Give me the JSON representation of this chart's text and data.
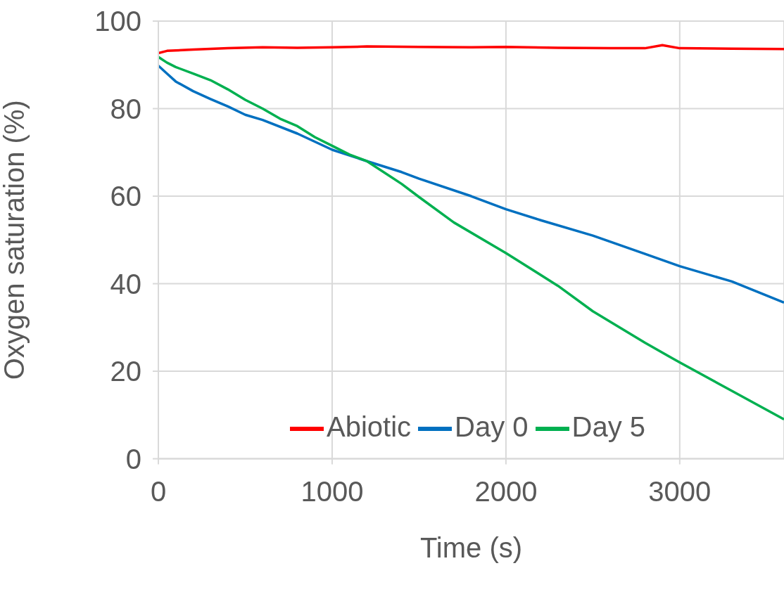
{
  "chart_data": {
    "type": "line",
    "xlabel": "Time (s)",
    "ylabel": "Oxygen saturation (%)",
    "xlim": [
      0,
      3600
    ],
    "xticks": [
      0,
      1000,
      2000,
      3000
    ],
    "ylim": [
      0,
      100
    ],
    "yticks": [
      0,
      20,
      40,
      60,
      80,
      100
    ],
    "grid": true,
    "legend": "bottom",
    "marker": "none",
    "line_style": "solid",
    "series": [
      {
        "name": "Abiotic",
        "color": "#ff0000",
        "x": [
          0,
          50,
          200,
          400,
          600,
          800,
          1000,
          1200,
          1500,
          1800,
          2000,
          2300,
          2600,
          2800,
          2900,
          3000,
          3300,
          3600
        ],
        "values": [
          92.7,
          93.2,
          93.5,
          93.8,
          94,
          93.9,
          94,
          94.2,
          94.1,
          94,
          94.1,
          93.9,
          93.8,
          93.8,
          94.5,
          93.8,
          93.7,
          93.6
        ]
      },
      {
        "name": "Day 0",
        "color": "#0070c0",
        "x": [
          0,
          50,
          100,
          200,
          300,
          400,
          500,
          600,
          800,
          1000,
          1200,
          1400,
          1500,
          1800,
          2000,
          2200,
          2500,
          2800,
          3000,
          3300,
          3600
        ],
        "values": [
          89.8,
          88,
          86.2,
          84,
          82.2,
          80.5,
          78.6,
          77.4,
          74.3,
          70.6,
          68,
          65.5,
          64,
          60,
          57,
          54.5,
          51,
          46.8,
          44,
          40.5,
          35.7
        ]
      },
      {
        "name": "Day 5",
        "color": "#00b050",
        "x": [
          0,
          50,
          100,
          200,
          300,
          400,
          500,
          600,
          700,
          800,
          900,
          1000,
          1100,
          1200,
          1400,
          1500,
          1700,
          2000,
          2300,
          2500,
          2800,
          3000,
          3300,
          3600
        ],
        "values": [
          91.8,
          90.5,
          89.5,
          88,
          86.5,
          84.4,
          82,
          80,
          77.7,
          76,
          73.5,
          71.5,
          69.5,
          68,
          62.8,
          59.8,
          54,
          47,
          39.5,
          33.7,
          26.5,
          22,
          15.5,
          9
        ]
      }
    ]
  }
}
